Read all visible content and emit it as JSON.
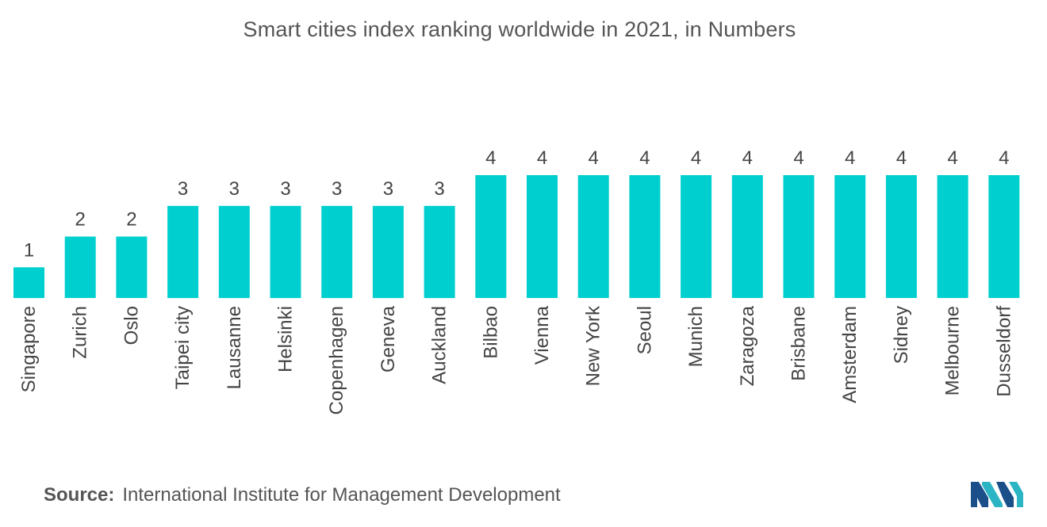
{
  "chart_data": {
    "type": "bar",
    "title": "Smart cities index ranking worldwide in 2021, in Numbers",
    "categories": [
      "Singapore",
      "Zurich",
      "Oslo",
      "Taipei city",
      "Lausanne",
      "Helsinki",
      "Copenhagen",
      "Geneva",
      "Auckland",
      "Bilbao",
      "Vienna",
      "New York",
      "Seoul",
      "Munich",
      "Zaragoza",
      "Brisbane",
      "Amsterdam",
      "Sidney",
      "Melbourne",
      "Dusseldorf"
    ],
    "values": [
      1,
      2,
      2,
      3,
      3,
      3,
      3,
      3,
      3,
      4,
      4,
      4,
      4,
      4,
      4,
      4,
      4,
      4,
      4,
      4
    ],
    "data_labels": [
      "1",
      "2",
      "2",
      "3",
      "3",
      "3",
      "3",
      "3",
      "3",
      "4",
      "4",
      "4",
      "4",
      "4",
      "4",
      "4",
      "4",
      "4",
      "4",
      "4"
    ],
    "xlabel": "",
    "ylabel": "",
    "ylim": [
      0,
      4
    ],
    "grid": false,
    "legend": "none",
    "bar_color": "#00CFCF"
  },
  "source": {
    "label": "Source:",
    "text": "International Institute for Management Development"
  },
  "logo": {
    "icon": "mordor-intelligence-logo-icon",
    "colors": [
      "#1a4f8a",
      "#2bb5c4"
    ]
  }
}
